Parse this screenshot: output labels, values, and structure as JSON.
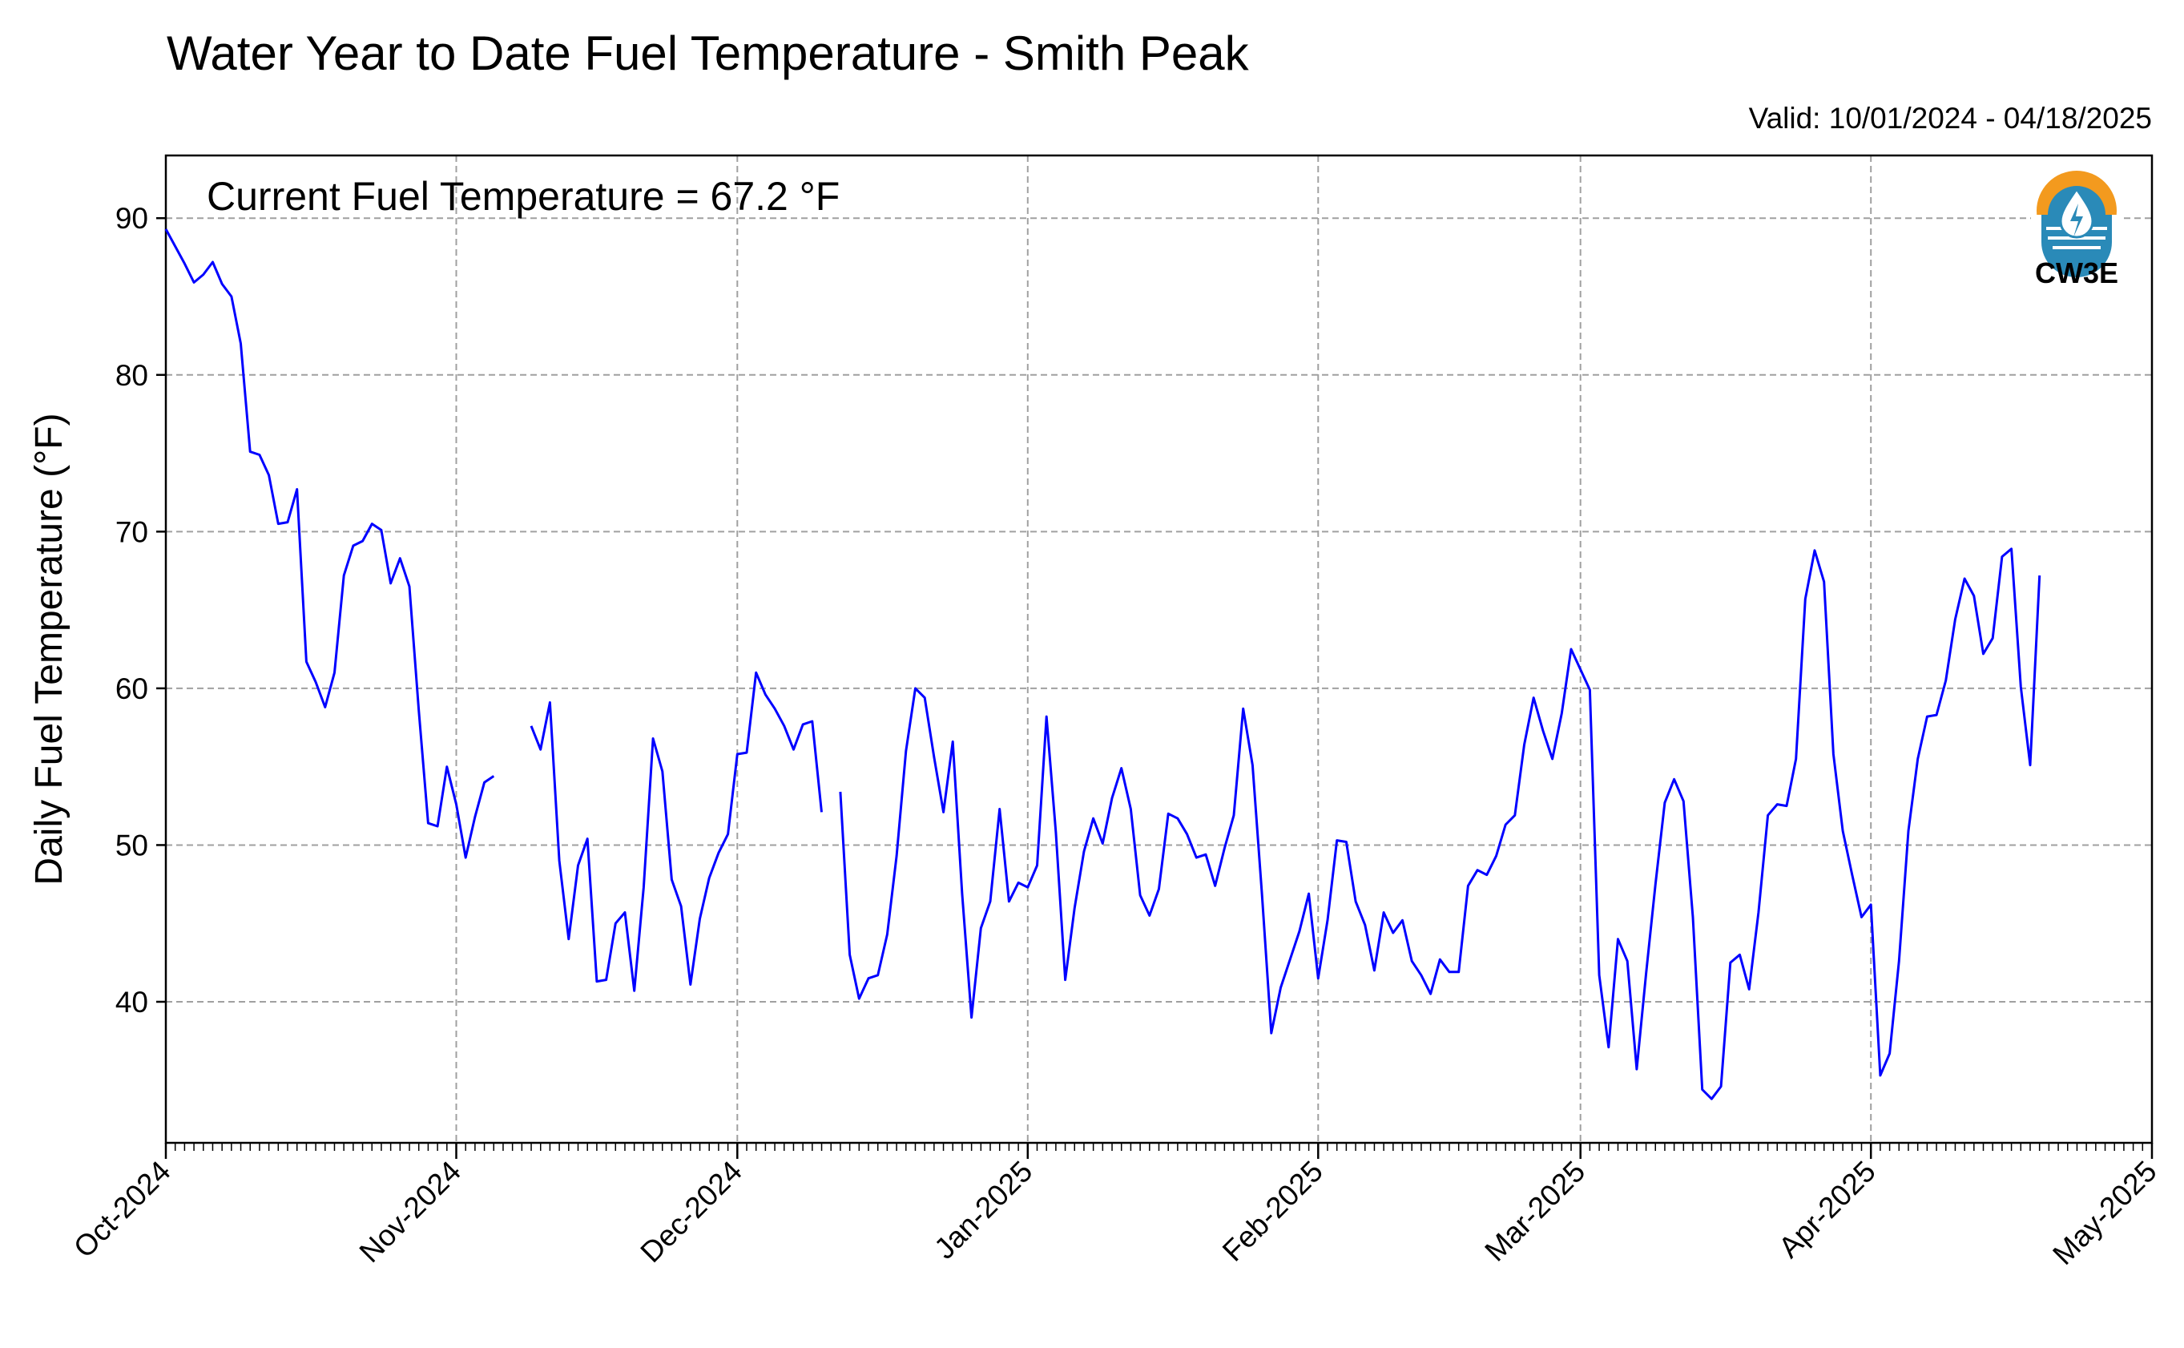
{
  "title": "Water Year to Date Fuel Temperature - Smith Peak",
  "valid_label": "Valid: 10/01/2024 - 04/18/2025",
  "annotation": "Current Fuel Temperature = 67.2 °F",
  "logo": {
    "text": "CW3E",
    "icon": "water-drop-sun-icon",
    "color": "#2a8ab8",
    "accent": "#f39a1e"
  },
  "colors": {
    "line": "#0000ff",
    "grid": "#a0a0a0"
  },
  "chart_data": {
    "type": "line",
    "title": "Water Year to Date Fuel Temperature - Smith Peak",
    "xlabel": "",
    "ylabel": "Daily Fuel Temperature (°F)",
    "ylim": [
      31,
      94
    ],
    "xlim": [
      "2024-10-01",
      "2025-05-01"
    ],
    "yticks": [
      40,
      50,
      60,
      70,
      80,
      90
    ],
    "xticks": [
      "2024-10-01",
      "2024-11-01",
      "2024-12-01",
      "2025-01-01",
      "2025-02-01",
      "2025-03-01",
      "2025-04-01",
      "2025-05-01"
    ],
    "xtick_labels": [
      "Oct-2024",
      "Nov-2024",
      "Dec-2024",
      "Jan-2025",
      "Feb-2025",
      "Mar-2025",
      "Apr-2025",
      "May-2025"
    ],
    "grid": true,
    "series": [
      {
        "color": "#0000ff",
        "start_date": "2024-10-01",
        "values": [
          89.3,
          88.2,
          87.1,
          85.9,
          86.4,
          87.2,
          85.8,
          85.0,
          82.0,
          75.1,
          74.9,
          73.6,
          70.5,
          70.6,
          72.7,
          61.7,
          60.4,
          58.8,
          61.0,
          67.2,
          69.1,
          69.4,
          70.5,
          70.1,
          66.7,
          68.3,
          66.5,
          58.6,
          51.4,
          51.2,
          55.0,
          52.6,
          49.2,
          51.8,
          54.0,
          54.4,
          null,
          null,
          null,
          57.6,
          56.1,
          59.1,
          49.0,
          44.0,
          48.7,
          50.4,
          41.3,
          41.4,
          45.0,
          45.7,
          40.7,
          47.3,
          56.8,
          54.7,
          47.8,
          46.1,
          41.1,
          45.3,
          47.9,
          49.5,
          50.7,
          55.8,
          55.9,
          61.0,
          59.6,
          58.7,
          57.6,
          56.1,
          57.7,
          57.9,
          52.1,
          null,
          53.4,
          43.0,
          40.2,
          41.5,
          41.7,
          44.3,
          49.3,
          56.0,
          60.0,
          59.4,
          55.6,
          52.1,
          56.6,
          46.9,
          39.0,
          44.7,
          46.4,
          52.3,
          46.4,
          47.6,
          47.3,
          48.7,
          58.2,
          50.8,
          41.4,
          46.0,
          49.6,
          51.7,
          50.1,
          53.0,
          54.9,
          52.3,
          46.8,
          45.5,
          47.2,
          52.0,
          51.7,
          50.7,
          49.2,
          49.4,
          47.4,
          49.8,
          51.9,
          58.7,
          55.1,
          46.9,
          38.0,
          40.9,
          42.7,
          44.5,
          46.9,
          41.5,
          45.2,
          50.3,
          50.2,
          46.4,
          44.9,
          42.0,
          45.7,
          44.4,
          45.2,
          42.6,
          41.7,
          40.5,
          42.7,
          41.9,
          41.9,
          47.4,
          48.4,
          48.1,
          49.3,
          51.3,
          51.9,
          56.4,
          59.4,
          57.3,
          55.5,
          58.4,
          62.5,
          61.2,
          59.9,
          41.7,
          37.1,
          44.0,
          42.6,
          35.7,
          41.8,
          47.5,
          52.7,
          54.2,
          52.8,
          45.4,
          34.4,
          33.8,
          34.6,
          42.5,
          43.0,
          40.8,
          45.7,
          51.9,
          52.6,
          52.5,
          55.5,
          65.7,
          68.8,
          66.8,
          55.8,
          50.9,
          48.1,
          45.4,
          46.2,
          35.3,
          36.7,
          42.6,
          50.9,
          55.5,
          58.2,
          58.3,
          60.5,
          64.4,
          67.0,
          65.9,
          62.2,
          63.2,
          68.4,
          68.9,
          60.1,
          55.1,
          67.2
        ]
      }
    ]
  }
}
